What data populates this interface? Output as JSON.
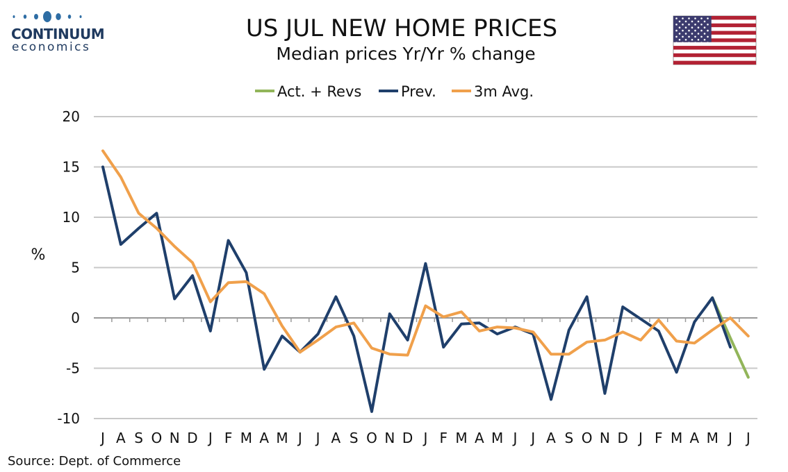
{
  "logo": {
    "name": "CONTINUUM",
    "sub": "economics",
    "color": "#2e6da4"
  },
  "flag": {
    "name": "us-flag-icon"
  },
  "source": "Source: Dept. of Commerce",
  "chart_data": {
    "type": "line",
    "title": "US JUL NEW HOME PRICES",
    "subtitle": "Median prices Yr/Yr % change",
    "ylabel": "%",
    "xlabel": "",
    "ylim": [
      -10,
      20
    ],
    "yticks": [
      20,
      15,
      10,
      5,
      0,
      -5,
      -10
    ],
    "grid": true,
    "legend_position": "top-center",
    "categories": [
      "J",
      "A",
      "S",
      "O",
      "N",
      "D",
      "J",
      "F",
      "M",
      "A",
      "M",
      "J",
      "J",
      "A",
      "S",
      "O",
      "N",
      "D",
      "J",
      "F",
      "M",
      "A",
      "M",
      "J",
      "J",
      "A",
      "S",
      "O",
      "N",
      "D",
      "J",
      "F",
      "M",
      "A",
      "M",
      "J",
      "J"
    ],
    "series": [
      {
        "name": "Act. + Revs",
        "color": "#92b55a",
        "values": [
          null,
          null,
          null,
          null,
          null,
          null,
          null,
          null,
          null,
          null,
          null,
          null,
          null,
          null,
          null,
          null,
          null,
          null,
          null,
          null,
          null,
          null,
          null,
          null,
          null,
          null,
          null,
          null,
          null,
          null,
          null,
          null,
          null,
          null,
          2.0,
          -2.0,
          -5.9
        ]
      },
      {
        "name": "Prev.",
        "color": "#1f3f6b",
        "values": [
          15.0,
          7.3,
          8.9,
          10.4,
          1.9,
          4.2,
          -1.3,
          7.7,
          4.5,
          -5.1,
          -1.8,
          -3.4,
          -1.6,
          2.1,
          -1.8,
          -9.3,
          0.4,
          -2.2,
          5.4,
          -2.9,
          -0.6,
          -0.5,
          -1.6,
          -0.9,
          -1.6,
          -8.1,
          -1.2,
          2.1,
          -7.5,
          1.1,
          -0.1,
          -1.3,
          -5.4,
          -0.4,
          2.0,
          -2.9,
          null
        ]
      },
      {
        "name": "3m Avg.",
        "color": "#f0a04b",
        "values": [
          16.6,
          14.0,
          10.4,
          8.9,
          7.1,
          5.5,
          1.6,
          3.5,
          3.6,
          2.4,
          -0.8,
          -3.4,
          -2.2,
          -0.9,
          -0.5,
          -3.0,
          -3.6,
          -3.7,
          1.2,
          0.1,
          0.6,
          -1.3,
          -0.9,
          -1.0,
          -1.4,
          -3.6,
          -3.6,
          -2.4,
          -2.2,
          -1.4,
          -2.2,
          -0.2,
          -2.3,
          -2.5,
          -1.2,
          0.0,
          -1.8
        ]
      }
    ]
  }
}
